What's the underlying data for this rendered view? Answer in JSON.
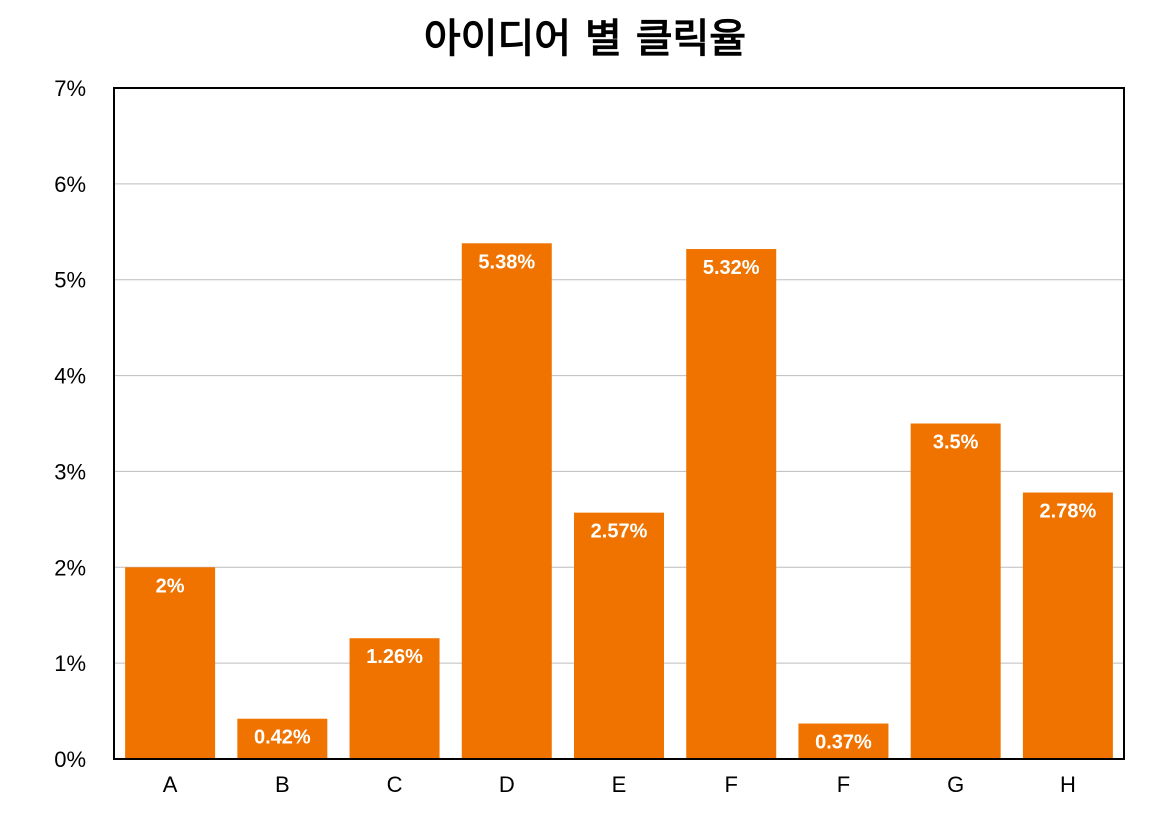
{
  "chart_data": {
    "type": "bar",
    "title": "아이디어 별 클릭율",
    "xlabel": "",
    "ylabel": "",
    "categories": [
      "A",
      "B",
      "C",
      "D",
      "E",
      "F",
      "F",
      "G",
      "H"
    ],
    "values": [
      2,
      0.42,
      1.26,
      5.38,
      2.57,
      5.32,
      0.37,
      3.5,
      2.78
    ],
    "value_labels": [
      "2%",
      "0.42%",
      "1.26%",
      "5.38%",
      "2.57%",
      "5.32%",
      "0.37%",
      "3.5%",
      "2.78%"
    ],
    "ylim": [
      0,
      7
    ],
    "yticks": [
      0,
      1,
      2,
      3,
      4,
      5,
      6,
      7
    ],
    "ytick_labels": [
      "0%",
      "1%",
      "2%",
      "3%",
      "4%",
      "5%",
      "6%",
      "7%"
    ],
    "grid": true,
    "legend": false,
    "colors": {
      "bar": "#F07300",
      "grid": "#bdbdbd",
      "axis": "#000000"
    }
  }
}
